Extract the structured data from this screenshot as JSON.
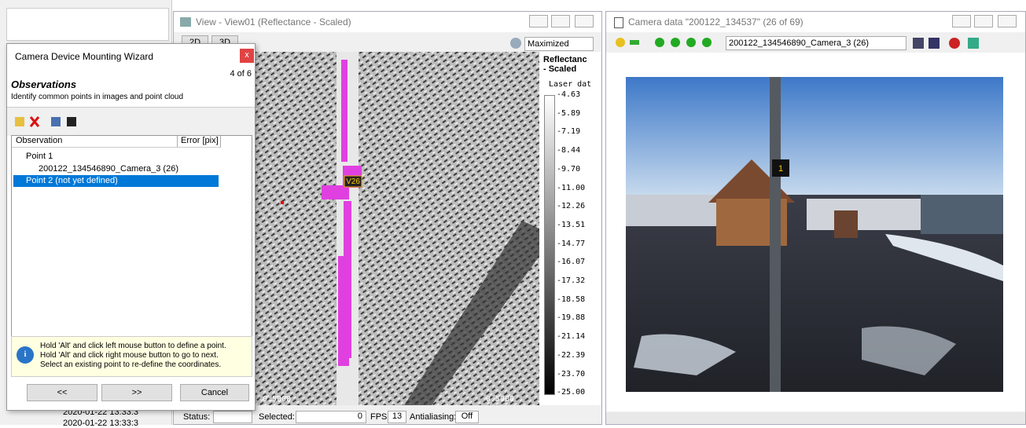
{
  "background": {
    "timestamps": [
      "2020-01-22  13:33:3",
      "2020-01-22  13:33:3"
    ]
  },
  "wizard": {
    "title": "Camera Device Mounting Wizard",
    "close": "x",
    "step": "4 of 6",
    "heading": "Observations",
    "subheading": "Identify common points in images and point cloud",
    "columns": [
      "Observation",
      "Error [pix]"
    ],
    "tree": [
      "Point 1",
      "200122_134546890_Camera_3 (26)",
      "Point 2 (not yet defined)"
    ],
    "info": [
      "Hold 'Alt' and click left mouse button to define a point.",
      "Hold 'Alt' and click right mouse button to go to next.",
      "Select an existing point to re-define the coordinates."
    ],
    "buttons": [
      "<<",
      ">>",
      "Cancel"
    ]
  },
  "view": {
    "title": "View - View01 (Reflectance - Scaled)",
    "tabs": [
      "2D",
      "3D"
    ],
    "layout": "Maximized",
    "legend_title": [
      "Reflectanc",
      "- Scaled"
    ],
    "legend_subtitle": "Laser dat",
    "scale": [
      "-4.63",
      "-5.89",
      "-7.19",
      "-8.44",
      "-9.70",
      "-11.00",
      "-12.26",
      "-13.51",
      "-14.77",
      "-16.07",
      "-17.32",
      "-18.58",
      "-19.88",
      "-21.14",
      "-22.39",
      "-23.70",
      "-25.00"
    ],
    "marker": "V26",
    "axis_labels": [
      "-0.5000",
      "0.5000"
    ],
    "status": {
      "status": "Status:",
      "selected": "Selected:",
      "selected_value": "0",
      "fps": "FPS:",
      "fps_value": "13",
      "antialiasing": "Antialiasing:",
      "antialiasing_value": "Off"
    }
  },
  "camera": {
    "title": "Camera data \"200122_134537\" (26 of 69)",
    "image_select": "200122_134546890_Camera_3 (26)",
    "marker": "1"
  }
}
